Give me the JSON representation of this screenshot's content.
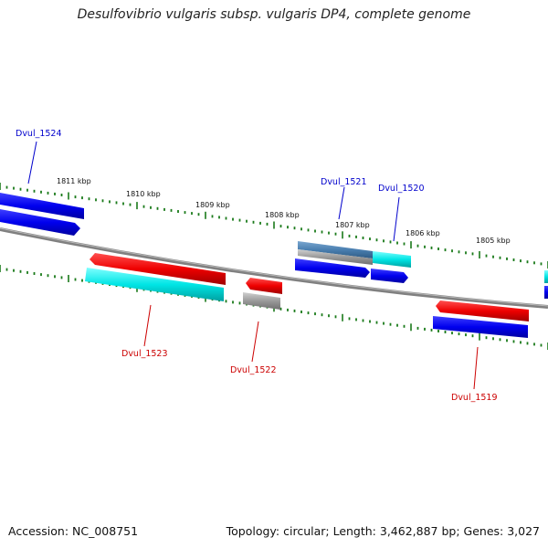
{
  "title": "Desulfovibrio vulgaris subsp. vulgaris DP4, complete genome",
  "footer": {
    "accession": "Accession: NC_008751",
    "topology": "Topology: circular; Length: 3,462,887 bp; Genes: 3,027"
  },
  "scale_labels": [
    "1811 kbp",
    "1810 kbp",
    "1809 kbp",
    "1808 kbp",
    "1807 kbp",
    "1806 kbp",
    "1805 kbp"
  ],
  "gene_labels": [
    {
      "name": "Dvul_1524",
      "strand": "top",
      "color": "#0000cc"
    },
    {
      "name": "Dvul_1521",
      "strand": "top",
      "color": "#0000cc"
    },
    {
      "name": "Dvul_1520",
      "strand": "top",
      "color": "#0000cc"
    },
    {
      "name": "Dvul_1523",
      "strand": "bottom",
      "color": "#cc0000"
    },
    {
      "name": "Dvul_1522",
      "strand": "bottom",
      "color": "#cc0000"
    },
    {
      "name": "Dvul_1519",
      "strand": "bottom",
      "color": "#cc0000"
    }
  ],
  "colors": {
    "forward_gene": "#0000ee",
    "reverse_gene": "#ee0000",
    "cds_cyan": "#00e5e5",
    "gray_feature": "#9a9a9a",
    "steelblue_feature": "#4a7fb0",
    "backbone": "#808080",
    "ticks": "#1a7a1a"
  }
}
